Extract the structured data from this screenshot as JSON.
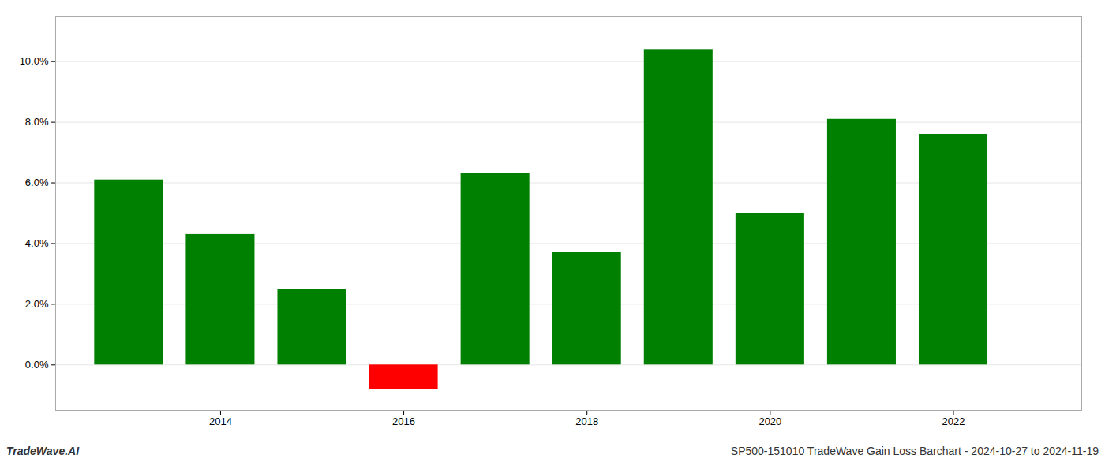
{
  "chart_data": {
    "type": "bar",
    "title": "SP500-151010 TradeWave Gain Loss Barchart - 2024-10-27 to 2024-11-19",
    "annotations": [
      "TradeWave.AI"
    ],
    "x": [
      2013,
      2014,
      2015,
      2016,
      2017,
      2018,
      2019,
      2020,
      2021,
      2022
    ],
    "values": [
      0.061,
      0.043,
      0.025,
      -0.008,
      0.063,
      0.037,
      0.104,
      0.05,
      0.081,
      0.076
    ],
    "colors": [
      "#008000",
      "#008000",
      "#008000",
      "#ff0000",
      "#008000",
      "#008000",
      "#008000",
      "#008000",
      "#008000",
      "#008000"
    ],
    "xlim": [
      2012.2,
      2023.4
    ],
    "xticks": [
      2014,
      2016,
      2018,
      2020,
      2022
    ],
    "ylim": [
      -0.015,
      0.115
    ],
    "yticks": [
      {
        "value": 0.0,
        "label": "0.0%"
      },
      {
        "value": 0.02,
        "label": "2.0%"
      },
      {
        "value": 0.04,
        "label": "4.0%"
      },
      {
        "value": 0.06,
        "label": "6.0%"
      },
      {
        "value": 0.08,
        "label": "8.0%"
      },
      {
        "value": 0.1,
        "label": "10.0%"
      }
    ],
    "grid": true
  }
}
